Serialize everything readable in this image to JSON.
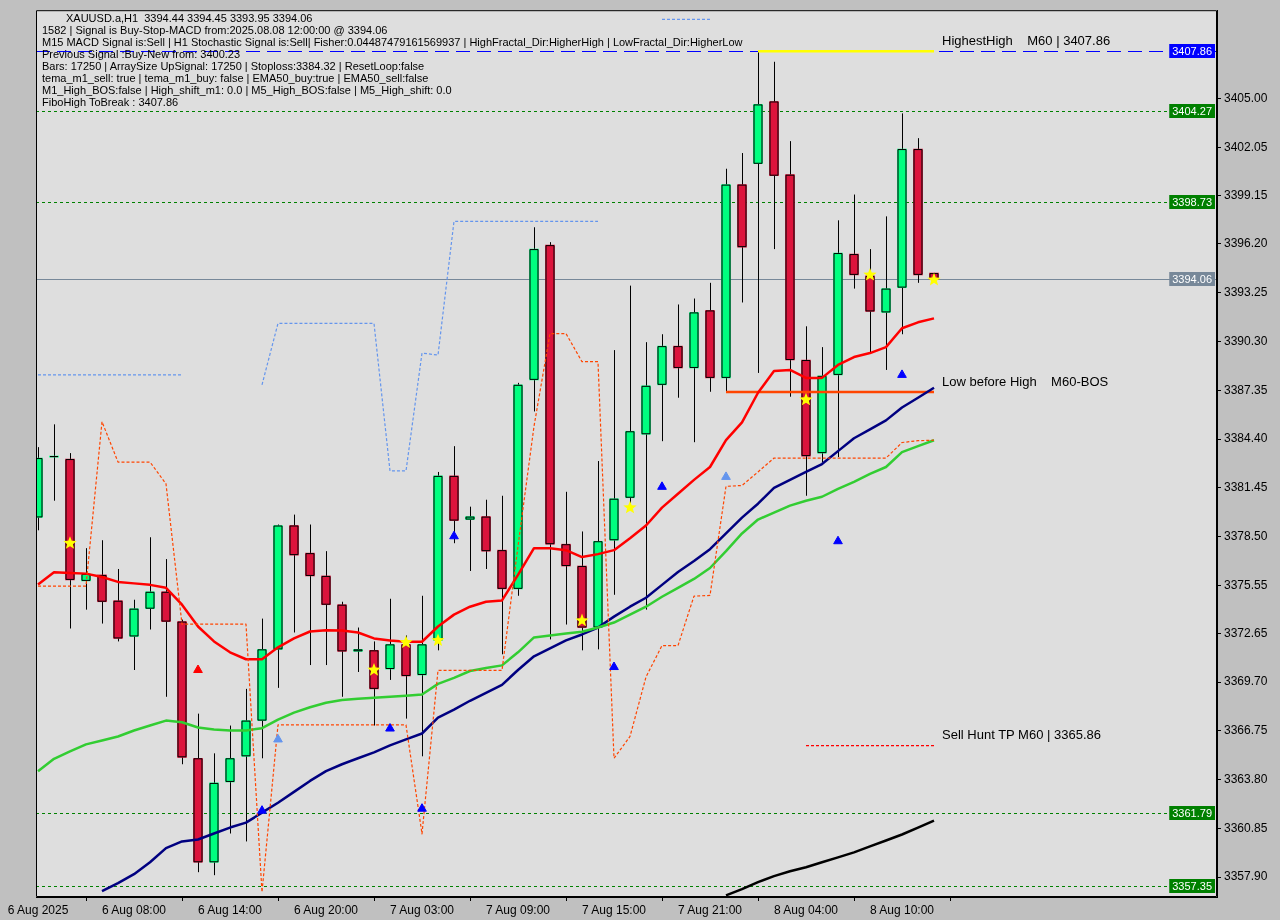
{
  "chart_data": {
    "type": "candlestick",
    "title": "XAUUSD.a,H1  3394.44 3394.45 3393.95 3394.06",
    "annotations": [
      "1582 | Signal is Buy-Stop-MACD from:2025.08.08 12:00:00 @ 3394.06",
      "M15 MACD Signal is:Sell | H1 Stochastic Signal is:Sell| Fisher:0.04487479161569937 | HighFractal_Dir:HigherHigh | LowFractal_Dir:HigherLow",
      "Previous Signal :Buy-New from: 3400.23",
      "Bars: 17250 | ArraySize UpSignal: 17250 | Stoploss:3384.32 | ResetLoop:false",
      "tema_m1_sell: true | tema_m1_buy: false | EMA50_buy:true | EMA50_sell:false",
      "M1_High_BOS:false | High_shift_m1: 0.0 | M5_High_BOS:false | M5_High_shift: 0.0",
      "FiboHigh ToBreak : 3407.86"
    ],
    "categories": [
      "6 Aug 2025",
      null,
      null,
      null,
      null,
      null,
      "6 Aug 08:00",
      null,
      null,
      null,
      null,
      null,
      "6 Aug 14:00",
      null,
      null,
      null,
      null,
      null,
      "6 Aug 20:00",
      null,
      null,
      null,
      null,
      null,
      "7 Aug 03:00",
      null,
      null,
      null,
      null,
      null,
      "7 Aug 09:00",
      null,
      null,
      null,
      null,
      null,
      "7 Aug 15:00",
      null,
      null,
      null,
      null,
      null,
      "7 Aug 21:00",
      null,
      null,
      null,
      null,
      null,
      "8 Aug 04:00",
      null,
      null,
      null,
      null,
      null,
      "8 Aug 10:00",
      null,
      null
    ],
    "ohlc": [
      [
        3379.66,
        3383.91,
        3378.88,
        3383.25
      ],
      [
        3383.31,
        3385.29,
        3380.67,
        3383.31
      ],
      [
        3383.19,
        3383.55,
        3372.94,
        3375.88
      ],
      [
        3375.82,
        3377.8,
        3374.08,
        3376.24
      ],
      [
        3376.18,
        3378.28,
        3373.24,
        3374.56
      ],
      [
        3374.62,
        3376.54,
        3372.16,
        3372.34
      ],
      [
        3372.46,
        3374.68,
        3370.43,
        3374.14
      ],
      [
        3374.14,
        3378.46,
        3372.88,
        3375.16
      ],
      [
        3375.16,
        3377.14,
        3368.81,
        3373.36
      ],
      [
        3373.36,
        3373.48,
        3364.73,
        3365.15
      ],
      [
        3365.09,
        3367.79,
        3358.2,
        3358.8
      ],
      [
        3358.8,
        3365.39,
        3358.02,
        3363.6
      ],
      [
        3363.66,
        3367.07,
        3360.54,
        3365.09
      ],
      [
        3365.21,
        3369.29,
        3360.06,
        3367.37
      ],
      [
        3367.37,
        3373.54,
        3365.09,
        3371.68
      ],
      [
        3371.68,
        3379.23,
        3369.35,
        3379.17
      ],
      [
        3379.17,
        3379.83,
        3372.7,
        3377.38
      ],
      [
        3377.5,
        3379.23,
        3370.73,
        3376.12
      ],
      [
        3376.12,
        3377.62,
        3370.73,
        3374.38
      ],
      [
        3374.38,
        3374.56,
        3368.81,
        3371.56
      ],
      [
        3371.56,
        3373.0,
        3370.31,
        3371.68
      ],
      [
        3371.62,
        3372.16,
        3367.07,
        3369.29
      ],
      [
        3370.49,
        3374.74,
        3369.83,
        3371.98
      ],
      [
        3371.98,
        3372.52,
        3367.49,
        3370.07
      ],
      [
        3370.13,
        3374.92,
        3365.21,
        3371.98
      ],
      [
        3372.22,
        3382.41,
        3371.62,
        3382.17
      ],
      [
        3382.17,
        3383.97,
        3378.1,
        3379.47
      ],
      [
        3379.53,
        3380.31,
        3376.42,
        3379.71
      ],
      [
        3379.71,
        3380.73,
        3376.54,
        3377.62
      ],
      [
        3377.68,
        3380.97,
        3371.38,
        3375.34
      ],
      [
        3375.34,
        3387.8,
        3374.92,
        3387.68
      ],
      [
        3387.98,
        3397.21,
        3386.07,
        3395.89
      ],
      [
        3396.13,
        3396.31,
        3372.28,
        3378.04
      ],
      [
        3378.04,
        3381.21,
        3373.18,
        3376.72
      ],
      [
        3376.72,
        3378.81,
        3371.62,
        3373.0
      ],
      [
        3373.0,
        3383.07,
        3371.68,
        3378.22
      ],
      [
        3378.28,
        3389.78,
        3374.98,
        3380.79
      ],
      [
        3380.85,
        3393.68,
        3380.49,
        3384.87
      ],
      [
        3384.69,
        3390.26,
        3374.08,
        3387.62
      ],
      [
        3387.68,
        3390.74,
        3384.27,
        3390.02
      ],
      [
        3390.02,
        3392.54,
        3386.9,
        3388.7
      ],
      [
        3388.7,
        3392.9,
        3384.21,
        3392.06
      ],
      [
        3392.18,
        3393.85,
        3387.26,
        3388.1
      ],
      [
        3388.1,
        3400.75,
        3387.26,
        3399.79
      ],
      [
        3399.79,
        3401.7,
        3392.66,
        3396.01
      ],
      [
        3401.05,
        3407.86,
        3388.4,
        3404.64
      ],
      [
        3404.82,
        3407.22,
        3395.89,
        3400.33
      ],
      [
        3400.39,
        3402.42,
        3386.96,
        3389.18
      ],
      [
        3389.18,
        3391.22,
        3380.97,
        3383.37
      ],
      [
        3383.55,
        3389.96,
        3383.01,
        3388.22
      ],
      [
        3388.28,
        3397.63,
        3383.31,
        3395.65
      ],
      [
        3395.59,
        3399.19,
        3393.5,
        3394.33
      ],
      [
        3394.27,
        3395.89,
        3389.66,
        3392.12
      ],
      [
        3392.06,
        3397.87,
        3388.58,
        3393.5
      ],
      [
        3393.56,
        3404.1,
        3390.74,
        3401.94
      ],
      [
        3401.94,
        3402.6,
        3393.85,
        3394.33
      ],
      [
        3394.44,
        3394.45,
        3393.95,
        3394.06
      ]
    ],
    "colors": [
      "#00ff7f",
      "#00ff7f",
      "#dc143c",
      "#00ff7f",
      "#dc143c",
      "#dc143c",
      "#00ff7f",
      "#00ff7f",
      "#dc143c",
      "#dc143c",
      "#dc143c",
      "#00ff7f",
      "#00ff7f",
      "#00ff7f",
      "#00ff7f",
      "#00ff7f",
      "#dc143c",
      "#dc143c",
      "#dc143c",
      "#dc143c",
      "#00ff7f",
      "#dc143c",
      "#00ff7f",
      "#dc143c",
      "#00ff7f",
      "#00ff7f",
      "#dc143c",
      "#00ff7f",
      "#dc143c",
      "#dc143c",
      "#00ff7f",
      "#00ff7f",
      "#dc143c",
      "#dc143c",
      "#dc143c",
      "#00ff7f",
      "#00ff7f",
      "#00ff7f",
      "#00ff7f",
      "#00ff7f",
      "#dc143c",
      "#00ff7f",
      "#dc143c",
      "#00ff7f",
      "#dc143c",
      "#00ff7f",
      "#dc143c",
      "#dc143c",
      "#dc143c",
      "#00ff7f",
      "#00ff7f",
      "#dc143c",
      "#dc143c",
      "#00ff7f",
      "#00ff7f",
      "#dc143c",
      "#dc143c"
    ],
    "series": [
      {
        "type": "line",
        "color": "#ff0000",
        "line_style": "solid",
        "values": [
          3375.6,
          3376.34,
          3376.3,
          3376.26,
          3376.06,
          3375.76,
          3375.67,
          3375.58,
          3375.4,
          3374.38,
          3373.06,
          3372.16,
          3371.5,
          3371.08,
          3371.08,
          3371.8,
          3372.34,
          3372.76,
          3372.84,
          3372.82,
          3372.7,
          3372.34,
          3372.22,
          3372.14,
          3372.14,
          3373.06,
          3373.78,
          3374.26,
          3374.56,
          3374.64,
          3376.18,
          3377.8,
          3377.8,
          3377.68,
          3377.26,
          3377.44,
          3377.68,
          3378.4,
          3379.17,
          3380.25,
          3381.09,
          3381.93,
          3382.71,
          3384.33,
          3385.41,
          3387.2,
          3388.52,
          3388.58,
          3388.1,
          3388.1,
          3388.88,
          3389.36,
          3389.6,
          3389.96,
          3391.1,
          3391.46,
          3391.7
        ]
      },
      {
        "type": "line",
        "color": "#32cd32",
        "line_style": "solid",
        "values": [
          3364.31,
          3365.06,
          3365.51,
          3365.93,
          3366.17,
          3366.41,
          3366.77,
          3367.07,
          3367.37,
          3367.27,
          3366.95,
          3366.83,
          3366.77,
          3366.77,
          3366.91,
          3367.43,
          3367.85,
          3368.18,
          3368.45,
          3368.61,
          3368.69,
          3368.75,
          3368.81,
          3368.87,
          3368.95,
          3369.59,
          3369.95,
          3370.37,
          3370.55,
          3370.71,
          3371.5,
          3372.4,
          3372.52,
          3372.64,
          3372.74,
          3373.0,
          3373.3,
          3373.78,
          3374.26,
          3374.86,
          3375.4,
          3375.94,
          3376.6,
          3377.62,
          3378.69,
          3379.53,
          3379.95,
          3380.37,
          3380.67,
          3380.91,
          3381.39,
          3381.81,
          3382.29,
          3382.71,
          3383.61,
          3383.97,
          3384.33
        ]
      },
      {
        "type": "line",
        "color": "#000080",
        "line_style": "solid",
        "values": [
          null,
          null,
          null,
          null,
          3357.06,
          3357.54,
          3358.08,
          3358.8,
          3359.66,
          3360.06,
          3360.18,
          3360.54,
          3360.9,
          3361.2,
          3361.8,
          3362.4,
          3363.06,
          3363.72,
          3364.31,
          3364.73,
          3365.09,
          3365.45,
          3365.87,
          3366.23,
          3366.59,
          3367.55,
          3368.03,
          3368.57,
          3369.05,
          3369.53,
          3370.43,
          3371.26,
          3371.74,
          3372.22,
          3372.58,
          3373.0,
          3373.66,
          3374.26,
          3374.8,
          3375.58,
          3376.36,
          3377.02,
          3377.74,
          3378.69,
          3379.65,
          3380.49,
          3381.45,
          3381.93,
          3382.41,
          3382.89,
          3383.67,
          3384.45,
          3384.99,
          3385.53,
          3386.31,
          3386.9,
          3387.5
        ]
      },
      {
        "type": "line",
        "color": "#000000",
        "line_style": "solid",
        "values": [
          null,
          null,
          null,
          null,
          null,
          null,
          null,
          null,
          null,
          null,
          null,
          null,
          null,
          null,
          null,
          null,
          null,
          null,
          null,
          null,
          null,
          null,
          null,
          null,
          null,
          null,
          null,
          null,
          null,
          null,
          null,
          null,
          null,
          null,
          null,
          null,
          null,
          null,
          null,
          null,
          null,
          null,
          null,
          3356.8,
          3357.18,
          3357.6,
          3357.96,
          3358.26,
          3358.5,
          3358.8,
          3359.1,
          3359.4,
          3359.76,
          3360.12,
          3360.48,
          3360.9,
          3361.32
        ]
      },
      {
        "type": "line",
        "color": "#ff4500",
        "line_style": "dashed",
        "values": [
          3375.51,
          3375.51,
          3375.51,
          3375.51,
          3385.45,
          3383.01,
          3383.01,
          3383.01,
          3381.69,
          3373.2,
          3373.2,
          3373.2,
          3373.2,
          3373.2,
          3357.0,
          3367.11,
          3367.11,
          3367.11,
          3367.11,
          3367.11,
          3367.11,
          3367.11,
          3367.11,
          3367.11,
          3360.52,
          3370.41,
          3370.41,
          3370.41,
          3370.41,
          3370.41,
          3377.92,
          3385.17,
          3390.78,
          3390.78,
          3389.08,
          3389.08,
          3365.09,
          3366.41,
          3370.01,
          3371.91,
          3371.91,
          3374.9,
          3374.94,
          3381.54,
          3381.59,
          3382.41,
          3383.25,
          3383.25,
          3383.25,
          3383.25,
          3383.25,
          3383.25,
          3383.25,
          3383.25,
          3384.19,
          3384.3,
          3384.33
        ]
      },
      {
        "type": "line",
        "color": "#6495ed",
        "line_style": "dashed",
        "values": [
          3388.28,
          3388.28,
          3388.28,
          3388.28,
          3388.28,
          3388.28,
          3388.28,
          3388.28,
          3388.28,
          3388.28,
          null,
          null,
          null,
          null,
          3387.68,
          3391.4,
          3391.4,
          3391.4,
          3391.4,
          3391.4,
          3391.4,
          3391.4,
          3382.47,
          3382.47,
          3389.6,
          3389.48,
          3397.57,
          3397.57,
          3397.57,
          3397.57,
          3397.57,
          3397.57,
          3397.57,
          3397.57,
          3397.57,
          3397.57,
          null,
          null,
          null,
          3409.79,
          3409.79,
          3409.79,
          3409.79,
          null,
          null,
          null,
          null,
          null,
          null,
          null,
          null,
          null,
          null,
          null,
          null,
          null,
          null
        ]
      },
      {
        "type": "line",
        "name": "HighestHigh    M60 | 3407.86",
        "color": "#ffff00",
        "line_style": "solid",
        "values": [
          null,
          null,
          null,
          null,
          null,
          null,
          null,
          null,
          null,
          null,
          null,
          null,
          null,
          null,
          null,
          null,
          null,
          null,
          null,
          null,
          null,
          null,
          null,
          null,
          null,
          null,
          null,
          null,
          null,
          null,
          null,
          null,
          null,
          null,
          null,
          null,
          null,
          null,
          null,
          null,
          null,
          null,
          null,
          null,
          null,
          3407.86,
          3407.86,
          3407.86,
          3407.86,
          3407.86,
          3407.86,
          3407.86,
          3407.86,
          3407.86,
          3407.86,
          3407.86,
          3407.86
        ]
      },
      {
        "type": "line",
        "name": "Low before High    M60-BOS",
        "color": "#ff4500",
        "line_style": "solid",
        "values": [
          null,
          null,
          null,
          null,
          null,
          null,
          null,
          null,
          null,
          null,
          null,
          null,
          null,
          null,
          null,
          null,
          null,
          null,
          null,
          null,
          null,
          null,
          null,
          null,
          null,
          null,
          null,
          null,
          null,
          null,
          null,
          null,
          null,
          null,
          null,
          null,
          null,
          null,
          null,
          null,
          null,
          null,
          null,
          3387.25,
          3387.25,
          3387.25,
          3387.25,
          3387.25,
          3387.25,
          3387.25,
          3387.25,
          3387.25,
          3387.25,
          3387.25,
          3387.25,
          3387.25,
          3387.25
        ]
      },
      {
        "type": "line",
        "name": "Sell Hunt TP M60 | 3365.86",
        "color": "#ff0000",
        "line_style": "dashed",
        "values": [
          null,
          null,
          null,
          null,
          null,
          null,
          null,
          null,
          null,
          null,
          null,
          null,
          null,
          null,
          null,
          null,
          null,
          null,
          null,
          null,
          null,
          null,
          null,
          null,
          null,
          null,
          null,
          null,
          null,
          null,
          null,
          null,
          null,
          null,
          null,
          null,
          null,
          null,
          null,
          null,
          null,
          null,
          null,
          null,
          null,
          null,
          null,
          null,
          3365.86,
          3365.86,
          3365.86,
          3365.86,
          3365.86,
          3365.86,
          3365.86,
          3365.86,
          3365.86
        ]
      },
      {
        "type": "scatter",
        "color": "#ffff00",
        "marker": "star",
        "values": [
          null,
          null,
          3378.1,
          null,
          null,
          null,
          null,
          null,
          null,
          null,
          null,
          null,
          null,
          null,
          null,
          null,
          null,
          null,
          null,
          null,
          null,
          3370.43,
          null,
          3372.1,
          null,
          3372.22,
          null,
          null,
          null,
          null,
          null,
          null,
          null,
          null,
          3373.42,
          null,
          null,
          3380.25,
          null,
          null,
          null,
          null,
          null,
          null,
          null,
          null,
          null,
          null,
          3386.78,
          null,
          null,
          null,
          3394.33,
          null,
          null,
          null,
          3394.03
        ]
      },
      {
        "type": "scatter",
        "color": "#0000ff",
        "marker": "triangle",
        "values": [
          null,
          null,
          null,
          null,
          null,
          null,
          null,
          null,
          null,
          null,
          null,
          null,
          null,
          null,
          3361.92,
          null,
          null,
          null,
          null,
          null,
          null,
          null,
          3366.89,
          null,
          3362.04,
          null,
          3378.52,
          null,
          null,
          null,
          null,
          null,
          null,
          null,
          null,
          null,
          3370.61,
          null,
          null,
          3381.51,
          null,
          null,
          null,
          null,
          null,
          null,
          null,
          null,
          null,
          null,
          3378.22,
          null,
          null,
          null,
          3388.28,
          null,
          null
        ]
      },
      {
        "type": "scatter",
        "color": "#ff0000",
        "marker": "triangle",
        "values": [
          null,
          null,
          null,
          null,
          null,
          null,
          null,
          null,
          null,
          null,
          3370.43,
          null,
          null,
          null,
          null,
          null,
          null,
          null,
          null,
          null,
          null,
          null,
          null,
          null,
          null,
          null,
          null,
          null,
          null,
          null,
          null,
          null,
          null,
          null,
          null,
          null,
          null,
          null,
          null,
          null,
          null,
          null,
          null,
          null,
          null,
          null,
          null,
          null,
          null,
          null,
          null,
          null,
          null,
          null,
          null,
          null,
          null
        ]
      },
      {
        "type": "scatter",
        "color": "#6495ed",
        "marker": "triangle",
        "values": [
          null,
          null,
          null,
          null,
          null,
          null,
          null,
          null,
          null,
          null,
          null,
          null,
          null,
          null,
          null,
          3366.23,
          null,
          null,
          null,
          null,
          null,
          null,
          null,
          null,
          null,
          null,
          null,
          null,
          null,
          null,
          null,
          null,
          null,
          null,
          null,
          null,
          null,
          null,
          null,
          null,
          null,
          null,
          null,
          3382.11,
          null,
          null,
          null,
          null,
          null,
          null,
          null,
          null,
          null,
          null,
          null,
          null,
          null
        ]
      }
    ],
    "ylim": [
      3356.7,
      3410.34
    ],
    "yticks": [
      {
        "value": 3405,
        "label": "3405.00"
      },
      3402.05,
      3399.15,
      {
        "value": 3396.2,
        "label": "3396.20"
      },
      3393.25,
      {
        "value": 3390.3,
        "label": "3390.30"
      },
      3387.35,
      {
        "value": 3384.4,
        "label": "3384.40"
      },
      3381.45,
      {
        "value": 3378.5,
        "label": "3378.50"
      },
      3375.55,
      3372.65,
      {
        "value": 3369.7,
        "label": "3369.70"
      },
      3366.75,
      {
        "value": 3363.8,
        "label": "3363.80"
      },
      3360.85,
      {
        "value": 3357.9,
        "label": "3357.90"
      }
    ],
    "ref_lines": [
      {
        "axis": "y",
        "value": 3407.86,
        "label": "3407.86",
        "color": "#0000ff",
        "line_style": "dashed"
      },
      {
        "axis": "y",
        "value": 3404.27,
        "label": "3404.27",
        "color": "#008000",
        "line_style": "dotted"
      },
      {
        "axis": "y",
        "value": 3398.73,
        "label": "3398.73",
        "color": "#008000",
        "line_style": "dotted"
      },
      {
        "axis": "y",
        "value": 3394.06,
        "label": "3394.06",
        "color": "#778899",
        "line_style": "solid"
      },
      {
        "axis": "y",
        "value": 3361.79,
        "label": "3361.79",
        "color": "#008000",
        "line_style": "dotted"
      },
      {
        "axis": "y",
        "value": 3357.35,
        "label": "3357.35",
        "color": "#008000",
        "line_style": "dotted"
      }
    ],
    "legend": false,
    "grid": false
  }
}
